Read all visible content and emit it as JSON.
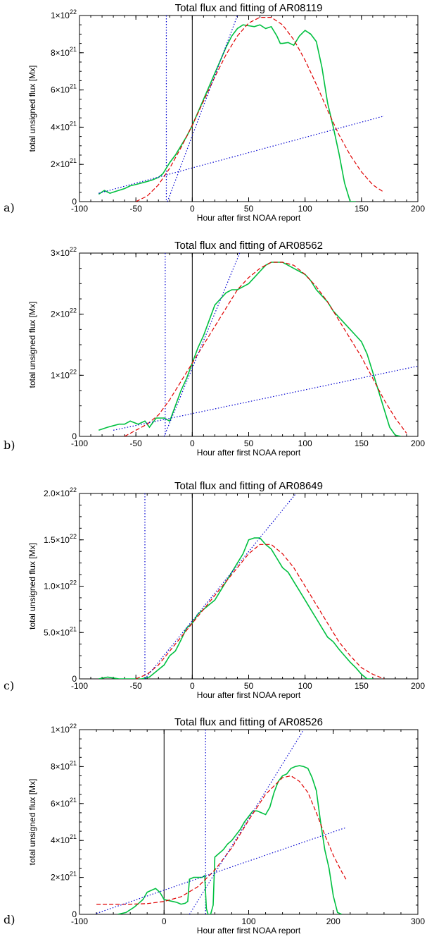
{
  "chart_data": [
    {
      "panel": "a)",
      "type": "line",
      "title": "Total flux and fitting of AR08119",
      "xlabel": "Hour after first NOAA report",
      "ylabel": "total unsigned flux [Mx]",
      "xlim": [
        -100,
        200
      ],
      "ylim": [
        0,
        1e+22
      ],
      "xticks": [
        "-100",
        "-50",
        "0",
        "50",
        "100",
        "150",
        "200"
      ],
      "yticks": [
        {
          "mantissa": "0",
          "exp": ""
        },
        {
          "mantissa": "2×10",
          "exp": "21"
        },
        {
          "mantissa": "4×10",
          "exp": "21"
        },
        {
          "mantissa": "6×10",
          "exp": "21"
        },
        {
          "mantissa": "8×10",
          "exp": "21"
        },
        {
          "mantissa": "1×10",
          "exp": "22"
        }
      ],
      "vlines": {
        "black": 0,
        "blue_dotted": -23
      },
      "series": [
        {
          "style": "green-solid",
          "x": [
            -83,
            -78,
            -73,
            -68,
            -60,
            -55,
            -48,
            -42,
            -36,
            -30,
            -26,
            -20,
            -15,
            -10,
            -5,
            0,
            5,
            10,
            15,
            20,
            25,
            30,
            35,
            40,
            45,
            50,
            55,
            60,
            65,
            70,
            75,
            78,
            80,
            85,
            90,
            95,
            100,
            105,
            110,
            115,
            120,
            125,
            130,
            135,
            140,
            145
          ],
          "y": [
            4e+20,
            6e+20,
            4.5e+20,
            5.5e+20,
            7e+20,
            8.5e+20,
            9.5e+20,
            1.05e+21,
            1.15e+21,
            1.3e+21,
            1.5e+21,
            2.1e+21,
            2.5e+21,
            3e+21,
            3.5e+21,
            4.1e+21,
            4.8e+21,
            5.5e+21,
            6.2e+21,
            6.9e+21,
            7.6e+21,
            8.3e+21,
            8.9e+21,
            9.3e+21,
            9.5e+21,
            9.45e+21,
            9.4e+21,
            9.5e+21,
            9.3e+21,
            9.4e+21,
            8.9e+21,
            8.5e+21,
            8.5e+21,
            8.55e+21,
            8.4e+21,
            8.9e+21,
            9.2e+21,
            9e+21,
            8.6e+21,
            7.2e+21,
            5.3e+21,
            4e+21,
            2.6e+21,
            1e+21,
            0.0,
            0.0
          ]
        },
        {
          "style": "red-dashed",
          "x": [
            -50,
            -40,
            -30,
            -20,
            -10,
            0,
            10,
            20,
            30,
            40,
            50,
            60,
            70,
            80,
            90,
            100,
            110,
            120,
            130,
            140,
            150,
            160,
            170
          ],
          "y": [
            0.0,
            3e+20,
            9e+20,
            1.8e+21,
            2.9e+21,
            4.1e+21,
            5.4e+21,
            6.7e+21,
            7.9e+21,
            8.9e+21,
            9.6e+21,
            9.9e+21,
            9.9e+21,
            9.5e+21,
            8.7e+21,
            7.6e+21,
            6.3e+21,
            4.9e+21,
            3.6e+21,
            2.5e+21,
            1.6e+21,
            9e+20,
            5e+20
          ]
        },
        {
          "style": "blue-dotted",
          "x": [
            -83,
            170
          ],
          "y": [
            4.5e+20,
            4.6e+21
          ]
        },
        {
          "style": "blue-dotted",
          "x": [
            -22,
            40
          ],
          "y": [
            0.0,
            1e+22
          ]
        }
      ]
    },
    {
      "panel": "b)",
      "type": "line",
      "title": "Total flux and fitting of AR08562",
      "xlabel": "Hour after first NOAA report",
      "ylabel": "total unsigned flux [Mx]",
      "xlim": [
        -100,
        200
      ],
      "ylim": [
        0,
        3e+22
      ],
      "xticks": [
        "-100",
        "-50",
        "0",
        "50",
        "100",
        "150",
        "200"
      ],
      "yticks": [
        {
          "mantissa": "0",
          "exp": ""
        },
        {
          "mantissa": "1×10",
          "exp": "22"
        },
        {
          "mantissa": "2×10",
          "exp": "22"
        },
        {
          "mantissa": "3×10",
          "exp": "22"
        }
      ],
      "vlines": {
        "black": 0,
        "blue_dotted": -24
      },
      "series": [
        {
          "style": "green-solid",
          "x": [
            -83,
            -75,
            -65,
            -60,
            -55,
            -48,
            -42,
            -38,
            -32,
            -25,
            -20,
            -15,
            -10,
            -5,
            0,
            5,
            10,
            15,
            20,
            25,
            30,
            35,
            40,
            45,
            50,
            55,
            60,
            65,
            70,
            75,
            80,
            85,
            90,
            95,
            100,
            105,
            110,
            115,
            120,
            125,
            130,
            135,
            140,
            145,
            150,
            155,
            160,
            165,
            170,
            175,
            180,
            185
          ],
          "y": [
            1e+21,
            1.5e+21,
            2e+21,
            2e+21,
            2.5e+21,
            2e+21,
            2.5e+21,
            1.5e+21,
            3e+21,
            3e+21,
            2.5e+21,
            5e+21,
            7.5e+21,
            9.5e+21,
            1.2e+22,
            1.45e+22,
            1.65e+22,
            1.9e+22,
            2.15e+22,
            2.25e+22,
            2.35e+22,
            2.4e+22,
            2.4e+22,
            2.45e+22,
            2.5e+22,
            2.6e+22,
            2.7e+22,
            2.8e+22,
            2.85e+22,
            2.85e+22,
            2.85e+22,
            2.8e+22,
            2.75e+22,
            2.7e+22,
            2.65e+22,
            2.55e+22,
            2.4e+22,
            2.3e+22,
            2.2e+22,
            2.05e+22,
            1.95e+22,
            1.85e+22,
            1.75e+22,
            1.65e+22,
            1.55e+22,
            1.35e+22,
            1.05e+22,
            7.5e+21,
            4.5e+21,
            1.5e+21,
            2e+20,
            0.0
          ]
        },
        {
          "style": "red-dashed",
          "x": [
            -60,
            -50,
            -40,
            -30,
            -20,
            -10,
            0,
            10,
            20,
            30,
            40,
            50,
            60,
            70,
            80,
            90,
            100,
            110,
            120,
            130,
            140,
            150,
            160,
            170,
            180,
            190
          ],
          "y": [
            0.0,
            1e+21,
            2e+21,
            3.5e+21,
            6e+21,
            9e+21,
            1.2e+22,
            1.5e+22,
            1.8e+22,
            2.1e+22,
            2.4e+22,
            2.6e+22,
            2.75e+22,
            2.85e+22,
            2.85e+22,
            2.8e+22,
            2.65e+22,
            2.45e+22,
            2.2e+22,
            1.9e+22,
            1.6e+22,
            1.3e+22,
            9.5e+21,
            6e+21,
            3e+21,
            5e+20
          ]
        },
        {
          "style": "blue-dotted",
          "x": [
            -70,
            200
          ],
          "y": [
            1e+21,
            1.15e+22
          ]
        },
        {
          "style": "blue-dotted",
          "x": [
            -25,
            42
          ],
          "y": [
            0.0,
            3e+22
          ]
        }
      ]
    },
    {
      "panel": "c)",
      "type": "line",
      "title": "Total flux and fitting of AR08649",
      "xlabel": "Hour after first NOAA report",
      "ylabel": "total unsigned flux [Mx]",
      "xlim": [
        -100,
        200
      ],
      "ylim": [
        0,
        2e+22
      ],
      "xticks": [
        "-100",
        "-50",
        "0",
        "50",
        "100",
        "150",
        "200"
      ],
      "yticks": [
        {
          "mantissa": "0",
          "exp": ""
        },
        {
          "mantissa": "5.0×10",
          "exp": "21"
        },
        {
          "mantissa": "1.0×10",
          "exp": "22"
        },
        {
          "mantissa": "1.5×10",
          "exp": "22"
        },
        {
          "mantissa": "2.0×10",
          "exp": "22"
        }
      ],
      "vlines": {
        "black": 0,
        "blue_dotted": -42
      },
      "series": [
        {
          "style": "green-solid",
          "x": [
            -83,
            -75,
            -65,
            -55,
            -45,
            -38,
            -30,
            -25,
            -20,
            -15,
            -10,
            -5,
            0,
            5,
            10,
            15,
            20,
            25,
            30,
            35,
            40,
            45,
            50,
            55,
            60,
            65,
            70,
            75,
            80,
            85,
            90,
            95,
            100,
            105,
            110,
            115,
            120,
            125,
            130,
            135,
            140,
            145,
            150,
            155,
            160
          ],
          "y": [
            0.0,
            2e+20,
            0.0,
            0.0,
            0.0,
            2e+20,
            1e+21,
            1.5e+21,
            2.5e+21,
            3e+21,
            4.2e+21,
            5.5e+21,
            6e+21,
            7e+21,
            7.5e+21,
            8e+21,
            8.5e+21,
            9.5e+21,
            1.05e+22,
            1.15e+22,
            1.25e+22,
            1.35e+22,
            1.5e+22,
            1.52e+22,
            1.52e+22,
            1.45e+22,
            1.4e+22,
            1.3e+22,
            1.2e+22,
            1.15e+22,
            1.05e+22,
            9.5e+21,
            8.5e+21,
            7.5e+21,
            6.5e+21,
            5.5e+21,
            4.5e+21,
            4e+21,
            3.2e+21,
            2.5e+21,
            1.8e+21,
            1.2e+21,
            5e+20,
            0.0,
            0.0
          ]
        },
        {
          "style": "red-dashed",
          "x": [
            -50,
            -40,
            -30,
            -20,
            -10,
            0,
            10,
            20,
            30,
            40,
            50,
            60,
            70,
            80,
            90,
            100,
            110,
            120,
            130,
            140,
            150,
            160,
            170
          ],
          "y": [
            0.0,
            5e+20,
            1.5e+21,
            3e+21,
            4.5e+21,
            6e+21,
            7.5e+21,
            9e+21,
            1.05e+22,
            1.2e+22,
            1.35e+22,
            1.45e+22,
            1.45e+22,
            1.35e+22,
            1.2e+22,
            1e+22,
            8e+21,
            6e+21,
            4e+21,
            2.5e+21,
            1.2e+21,
            5e+20,
            0.0
          ]
        },
        {
          "style": "blue-dotted",
          "x": [
            -42,
            92
          ],
          "y": [
            0.0,
            2e+22
          ]
        }
      ]
    },
    {
      "panel": "d)",
      "type": "line",
      "title": "Total flux and fitting of AR08526",
      "xlabel": "Hour after first NOAA report",
      "ylabel": "total unsigned flux [Mx]",
      "xlim": [
        -100,
        300
      ],
      "ylim": [
        0,
        1e+22
      ],
      "xticks": [
        "-100",
        "0",
        "100",
        "200",
        "300"
      ],
      "yticks": [
        {
          "mantissa": "0",
          "exp": ""
        },
        {
          "mantissa": "2×10",
          "exp": "21"
        },
        {
          "mantissa": "4×10",
          "exp": "21"
        },
        {
          "mantissa": "6×10",
          "exp": "21"
        },
        {
          "mantissa": "8×10",
          "exp": "21"
        },
        {
          "mantissa": "1×10",
          "exp": "22"
        }
      ],
      "vlines": {
        "black": 0,
        "blue_dotted": 49
      },
      "series": [
        {
          "style": "green-solid",
          "x": [
            -55,
            -45,
            -35,
            -30,
            -25,
            -20,
            -15,
            -10,
            -5,
            0,
            5,
            10,
            15,
            20,
            25,
            28,
            30,
            35,
            40,
            45,
            48,
            50,
            52,
            55,
            58,
            60,
            65,
            70,
            75,
            80,
            85,
            90,
            95,
            100,
            105,
            110,
            115,
            120,
            125,
            130,
            135,
            140,
            145,
            150,
            155,
            160,
            165,
            170,
            175,
            180,
            185,
            190,
            195,
            200,
            205,
            210
          ],
          "y": [
            0.0,
            1e+20,
            4e+20,
            6e+20,
            8e+20,
            1.2e+21,
            1.3e+21,
            1.4e+21,
            1.2e+21,
            8e+20,
            7.5e+20,
            7e+20,
            6.5e+20,
            5.5e+20,
            6e+20,
            7e+20,
            1.9e+21,
            2e+21,
            2e+21,
            2e+21,
            2.1e+21,
            3e+20,
            0.0,
            0.0,
            5e+20,
            3.1e+21,
            3.3e+21,
            3.5e+21,
            3.8e+21,
            4e+21,
            4.3e+21,
            4.6e+21,
            5e+21,
            5.3e+21,
            5.6e+21,
            5.6e+21,
            5.5e+21,
            5.4e+21,
            5.8e+21,
            6.6e+21,
            7.2e+21,
            7.5e+21,
            7.6e+21,
            7.9e+21,
            8e+21,
            8.05e+21,
            8e+21,
            7.9e+21,
            7.4e+21,
            6.7e+21,
            5e+21,
            3.5e+21,
            2.5e+21,
            1e+21,
            1e+20,
            0.0
          ]
        },
        {
          "style": "red-dashed",
          "x": [
            -80,
            -60,
            -40,
            -20,
            0,
            20,
            40,
            60,
            80,
            100,
            120,
            140,
            150,
            160,
            170,
            180,
            190,
            200,
            210,
            215
          ],
          "y": [
            5.5e+20,
            5.5e+20,
            5.5e+20,
            5.8e+20,
            7e+20,
            9.5e+20,
            1.5e+21,
            2.4e+21,
            3.6e+21,
            5.1e+21,
            6.5e+21,
            7.4e+21,
            7.5e+21,
            7.2e+21,
            6.6e+21,
            5.5e+21,
            4.3e+21,
            3.2e+21,
            2.3e+21,
            1.9e+21
          ]
        },
        {
          "style": "blue-dotted",
          "x": [
            -80,
            215
          ],
          "y": [
            5e+19,
            4.7e+21
          ]
        },
        {
          "style": "blue-dotted",
          "x": [
            30,
            165
          ],
          "y": [
            0.0,
            1e+22
          ]
        }
      ]
    }
  ],
  "colors": {
    "data": "#00c040",
    "fit": "#e00000",
    "linear": "#0000d0",
    "axis": "#000000"
  }
}
